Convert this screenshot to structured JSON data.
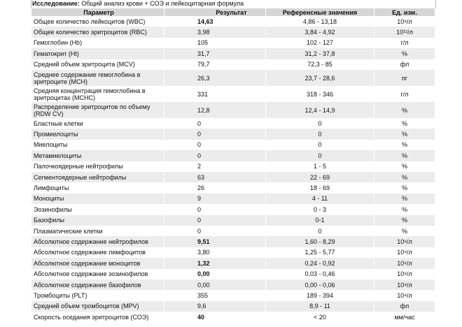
{
  "header": {
    "label": "Исследование:",
    "title": "Общий анализ крови + СОЭ и лейкоцитарная формула"
  },
  "table": {
    "columns": [
      "Параметр",
      "Результат",
      "Референсные значения",
      "Ед. изм."
    ],
    "rows": [
      [
        "Общее количество лейкоцитов (WBC)",
        "14,63",
        "4,86 - 13,18",
        "10⁹/л"
      ],
      [
        "Общее количество эритроцитов (RBC)",
        "3,98",
        "3,84 - 4,92",
        "10¹²/л"
      ],
      [
        "Гемоглобин (Hb)",
        "105",
        "102 - 127",
        "г/л"
      ],
      [
        "Гематокрит (Ht)",
        "31,7",
        "31,2 - 37,8",
        "%"
      ],
      [
        "Средний объем эритроцита (MCV)",
        "79,7",
        "72,3 - 85",
        "фл"
      ],
      [
        "Среднее содержание гемоглобина в эритроците (MCH)",
        "26,3",
        "23,7 - 28,6",
        "пг"
      ],
      [
        "Средняя концентрация гемоглобина в эритроцитах (MCHC)",
        "331",
        "318 - 346",
        "г/л"
      ],
      [
        "Распределение эритроцитов по объему (RDW CV)",
        "12,8",
        "12,4 - 14,9",
        "%"
      ],
      [
        "Бластные клетки",
        "0",
        "0",
        "%"
      ],
      [
        "Промиелоциты",
        "0",
        "0",
        "%"
      ],
      [
        "Миелоциты",
        "0",
        "0",
        "%"
      ],
      [
        "Метамиелоциты",
        "0",
        "0",
        "%"
      ],
      [
        "Палочкоядерные нейтрофилы",
        "2",
        "1 - 5",
        "%"
      ],
      [
        "Сегментоядерные нейтрофилы",
        "63",
        "22 - 69",
        "%"
      ],
      [
        "Лимфоциты",
        "26",
        "18 - 69",
        "%"
      ],
      [
        "Моноциты",
        "9",
        "4 - 11",
        "%"
      ],
      [
        "Эозинофилы",
        "0",
        "0 - 3",
        "%"
      ],
      [
        "Базофилы",
        "0",
        "0-1",
        "%"
      ],
      [
        "Плазматические клетки",
        "0",
        "0",
        "%"
      ],
      [
        "Абсолютное содержание нейтрофилов",
        "9,51",
        "1,60 - 8,29",
        "10⁹/л"
      ],
      [
        "Абсолютное содержание лимфоцитов",
        "3,80",
        "1,25 - 5,77",
        "10⁹/л"
      ],
      [
        "Абсолютное содержание моноцитов",
        "1,32",
        "0,24 - 0,92",
        "10⁹/л"
      ],
      [
        "Абсолютное содержание эозинофилов",
        "0,00",
        "0,03 - 0,46",
        "10⁹/л"
      ],
      [
        "Абсолютное содержание базофилов",
        "0,00",
        "0,00 - 0,06",
        "10⁹/л"
      ],
      [
        "Тромбоциты (PLT)",
        "355",
        "189 - 394",
        "10⁹/л"
      ],
      [
        "Средний объем тромбоцитов (MPV)",
        "9,6",
        "8,9 - 11",
        "фл"
      ],
      [
        "Скорость оседания эритроцитов (СОЭ)",
        "40",
        "< 20",
        "мм/час"
      ]
    ],
    "bold_results": [
      0,
      19,
      21,
      22,
      26
    ]
  }
}
